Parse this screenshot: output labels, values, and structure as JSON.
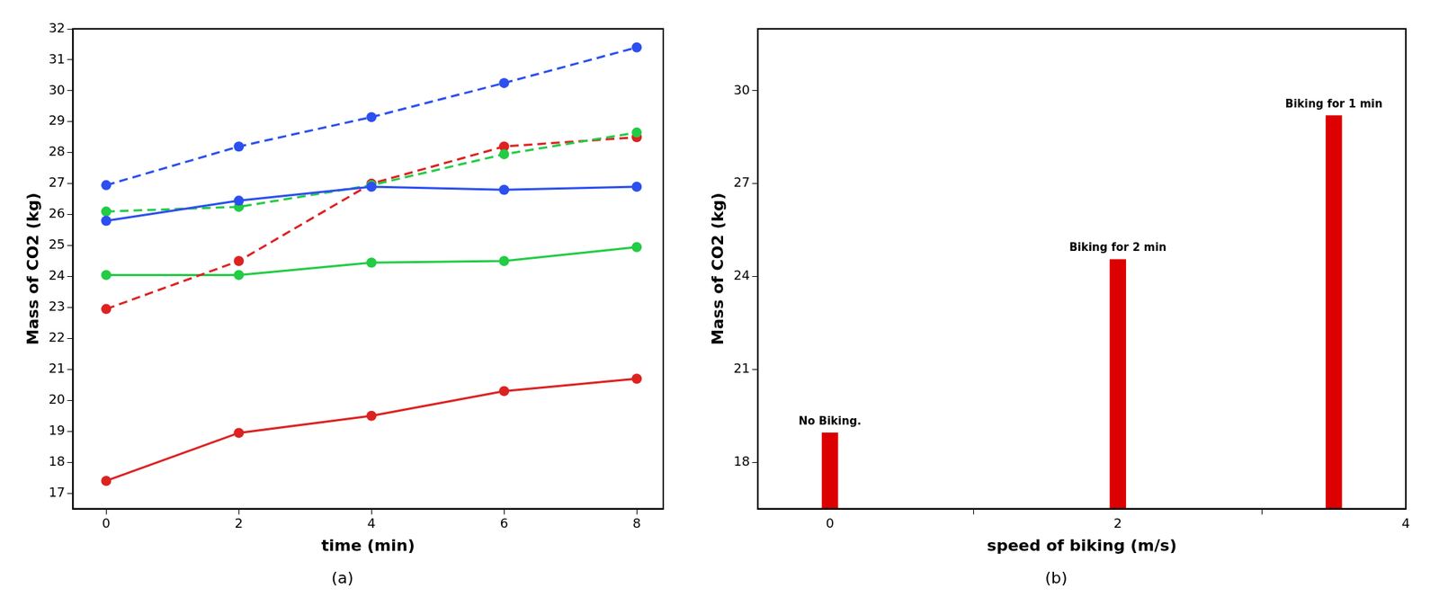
{
  "chart_data": [
    {
      "type": "line",
      "title": "(a)",
      "x_label": "time (min)",
      "y_label": "Mass of CO2 (kg)",
      "x": [
        0,
        2,
        4,
        6,
        8
      ],
      "series": [
        {
          "color": "#2b4ff0",
          "line_style": "dashed",
          "marker": "circle",
          "values": [
            26.95,
            28.2,
            29.15,
            30.25,
            31.4
          ]
        },
        {
          "color": "#2b4ff0",
          "line_style": "solid",
          "marker": "circle",
          "values": [
            25.8,
            26.45,
            26.9,
            26.8,
            26.9
          ]
        },
        {
          "color": "#22cc44",
          "line_style": "dashed",
          "marker": "circle",
          "values": [
            26.1,
            26.25,
            26.95,
            27.95,
            28.65
          ]
        },
        {
          "color": "#dd2222",
          "line_style": "dashed",
          "marker": "circle",
          "values": [
            22.95,
            24.5,
            27.0,
            28.2,
            28.5
          ]
        },
        {
          "color": "#22cc44",
          "line_style": "solid",
          "marker": "circle",
          "values": [
            24.05,
            24.05,
            24.45,
            24.5,
            24.95
          ]
        },
        {
          "color": "#dd2222",
          "line_style": "solid",
          "marker": "circle",
          "values": [
            17.4,
            18.95,
            19.5,
            20.3,
            20.7
          ]
        }
      ],
      "xlim": [
        -0.5,
        8.4
      ],
      "xticks": [
        0,
        2,
        4,
        6,
        8
      ],
      "ylim": [
        16.5,
        32
      ],
      "yticks": [
        17,
        18,
        19,
        20,
        21,
        22,
        23,
        24,
        25,
        26,
        27,
        28,
        29,
        30,
        31,
        32
      ],
      "grid": false
    },
    {
      "type": "bar",
      "title": "(b)",
      "x_label": "speed of biking (m/s)",
      "y_label": "Mass of CO2 (kg)",
      "x": [
        0,
        2,
        3.5
      ],
      "values": [
        18.95,
        24.55,
        29.2
      ],
      "annotations": [
        "No Biking.",
        "Biking for 2 min",
        "Biking for 1 min"
      ],
      "color": "#dd0000",
      "xlim": [
        -0.5,
        4
      ],
      "xticks": [
        0,
        2,
        4
      ],
      "ylim": [
        16.5,
        32
      ],
      "yticks": [
        18,
        21,
        24,
        27,
        30
      ],
      "grid": false
    }
  ]
}
